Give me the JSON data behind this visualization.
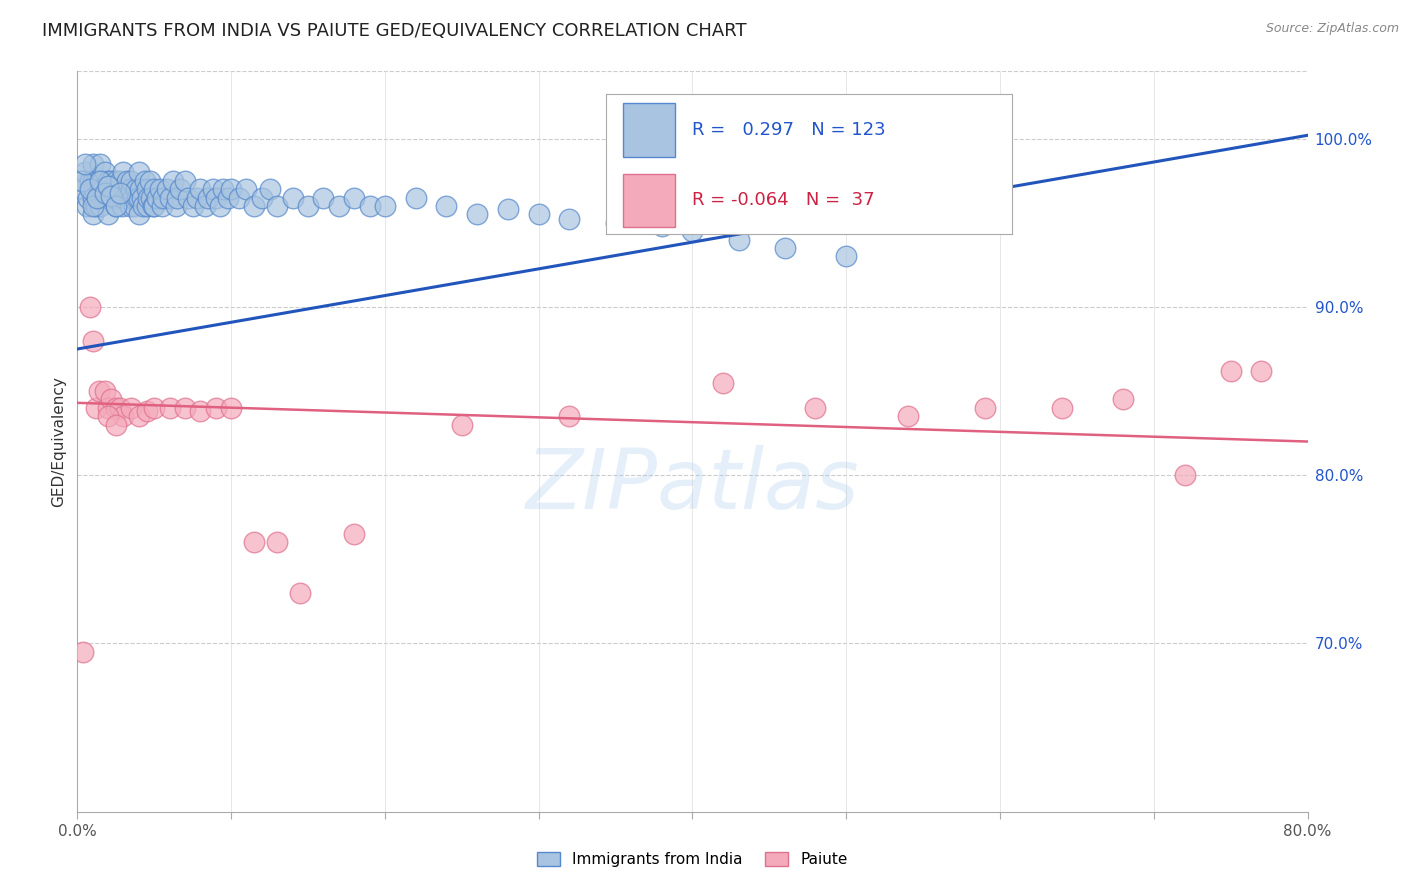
{
  "title": "IMMIGRANTS FROM INDIA VS PAIUTE GED/EQUIVALENCY CORRELATION CHART",
  "source": "Source: ZipAtlas.com",
  "ylabel": "GED/Equivalency",
  "ytick_labels": [
    "100.0%",
    "90.0%",
    "80.0%",
    "70.0%"
  ],
  "ytick_positions": [
    1.0,
    0.9,
    0.8,
    0.7
  ],
  "xlim": [
    0.0,
    0.8
  ],
  "ylim": [
    0.6,
    1.04
  ],
  "legend_r_india": "0.297",
  "legend_n_india": "123",
  "legend_r_paiute": "-0.064",
  "legend_n_paiute": "37",
  "blue_color": "#A8C4E0",
  "pink_color": "#F4AABB",
  "blue_edge": "#5588CC",
  "pink_edge": "#E07090",
  "line_blue": "#2255BB",
  "line_pink": "#E06080",
  "india_x": [
    0.003,
    0.004,
    0.005,
    0.006,
    0.007,
    0.008,
    0.009,
    0.01,
    0.01,
    0.01,
    0.01,
    0.011,
    0.012,
    0.012,
    0.013,
    0.014,
    0.015,
    0.015,
    0.015,
    0.016,
    0.016,
    0.017,
    0.018,
    0.018,
    0.019,
    0.02,
    0.02,
    0.02,
    0.021,
    0.022,
    0.023,
    0.024,
    0.025,
    0.025,
    0.026,
    0.027,
    0.028,
    0.029,
    0.03,
    0.03,
    0.031,
    0.032,
    0.033,
    0.034,
    0.035,
    0.035,
    0.036,
    0.037,
    0.038,
    0.039,
    0.04,
    0.04,
    0.04,
    0.041,
    0.042,
    0.043,
    0.044,
    0.045,
    0.045,
    0.046,
    0.047,
    0.048,
    0.049,
    0.05,
    0.05,
    0.052,
    0.054,
    0.055,
    0.056,
    0.058,
    0.06,
    0.062,
    0.064,
    0.065,
    0.067,
    0.07,
    0.072,
    0.075,
    0.078,
    0.08,
    0.083,
    0.085,
    0.088,
    0.09,
    0.093,
    0.095,
    0.098,
    0.1,
    0.105,
    0.11,
    0.115,
    0.12,
    0.125,
    0.13,
    0.14,
    0.15,
    0.16,
    0.17,
    0.18,
    0.19,
    0.2,
    0.22,
    0.24,
    0.26,
    0.28,
    0.3,
    0.32,
    0.35,
    0.38,
    0.4,
    0.43,
    0.46,
    0.5,
    0.003,
    0.005,
    0.008,
    0.01,
    0.013,
    0.015,
    0.018,
    0.02,
    0.022,
    0.025,
    0.028
  ],
  "india_y": [
    0.975,
    0.97,
    0.98,
    0.96,
    0.965,
    0.975,
    0.97,
    0.985,
    0.975,
    0.965,
    0.955,
    0.97,
    0.975,
    0.96,
    0.965,
    0.975,
    0.985,
    0.97,
    0.96,
    0.975,
    0.965,
    0.97,
    0.98,
    0.965,
    0.97,
    0.975,
    0.965,
    0.955,
    0.97,
    0.975,
    0.965,
    0.97,
    0.975,
    0.96,
    0.965,
    0.97,
    0.975,
    0.96,
    0.98,
    0.965,
    0.97,
    0.975,
    0.965,
    0.96,
    0.97,
    0.975,
    0.965,
    0.96,
    0.97,
    0.965,
    0.98,
    0.965,
    0.955,
    0.97,
    0.965,
    0.96,
    0.975,
    0.97,
    0.96,
    0.965,
    0.975,
    0.965,
    0.96,
    0.97,
    0.96,
    0.965,
    0.97,
    0.96,
    0.965,
    0.97,
    0.965,
    0.975,
    0.96,
    0.965,
    0.97,
    0.975,
    0.965,
    0.96,
    0.965,
    0.97,
    0.96,
    0.965,
    0.97,
    0.965,
    0.96,
    0.97,
    0.965,
    0.97,
    0.965,
    0.97,
    0.96,
    0.965,
    0.97,
    0.96,
    0.965,
    0.96,
    0.965,
    0.96,
    0.965,
    0.96,
    0.96,
    0.965,
    0.96,
    0.955,
    0.958,
    0.955,
    0.952,
    0.95,
    0.948,
    0.945,
    0.94,
    0.935,
    0.93,
    0.975,
    0.985,
    0.97,
    0.96,
    0.965,
    0.975,
    0.968,
    0.972,
    0.966,
    0.96,
    0.968
  ],
  "paiute_x": [
    0.004,
    0.008,
    0.01,
    0.012,
    0.014,
    0.018,
    0.02,
    0.022,
    0.025,
    0.028,
    0.03,
    0.035,
    0.04,
    0.045,
    0.05,
    0.06,
    0.07,
    0.08,
    0.09,
    0.1,
    0.115,
    0.13,
    0.145,
    0.18,
    0.25,
    0.32,
    0.42,
    0.48,
    0.54,
    0.59,
    0.64,
    0.68,
    0.72,
    0.75,
    0.77,
    0.02,
    0.025
  ],
  "paiute_y": [
    0.695,
    0.9,
    0.88,
    0.84,
    0.85,
    0.85,
    0.84,
    0.845,
    0.84,
    0.84,
    0.835,
    0.84,
    0.835,
    0.838,
    0.84,
    0.84,
    0.84,
    0.838,
    0.84,
    0.84,
    0.76,
    0.76,
    0.73,
    0.765,
    0.83,
    0.835,
    0.855,
    0.84,
    0.835,
    0.84,
    0.84,
    0.845,
    0.8,
    0.862,
    0.862,
    0.835,
    0.83
  ],
  "india_line_x": [
    0.0,
    0.8
  ],
  "india_line_y": [
    0.875,
    1.002
  ],
  "paiute_line_x": [
    0.0,
    0.8
  ],
  "paiute_line_y": [
    0.843,
    0.82
  ],
  "watermark": "ZIPatlas",
  "background_color": "#ffffff",
  "grid_color": "#cccccc",
  "title_fontsize": 13,
  "axis_tick_fontsize": 11,
  "ylabel_fontsize": 11,
  "legend_fontsize": 13
}
